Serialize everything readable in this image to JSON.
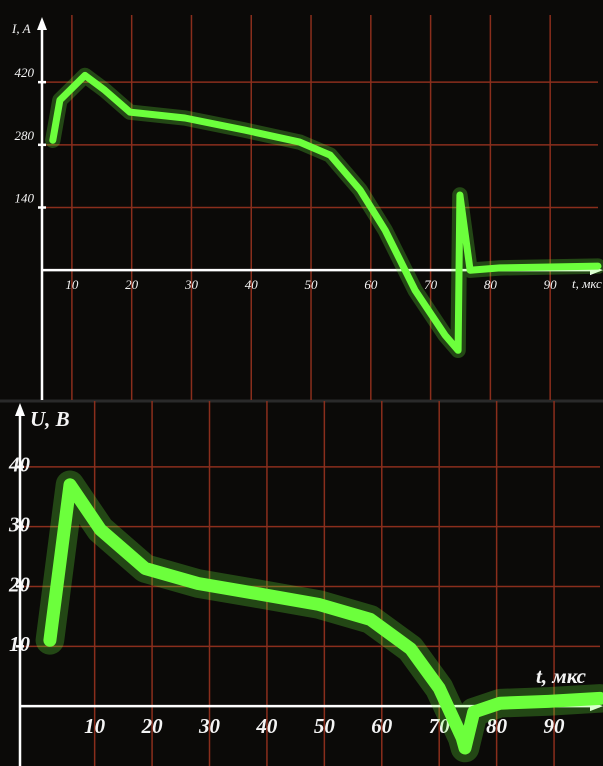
{
  "chart_data": [
    {
      "type": "line",
      "y_label": "I, A",
      "x_label": "t, мкс",
      "color": "#6cff3c",
      "grid": true,
      "x": [
        6.8,
        8,
        12.2,
        15.5,
        19.7,
        28.9,
        38.9,
        48.1,
        53.2,
        58.2,
        62.4,
        67.4,
        72.4,
        74.6,
        74.9,
        76.6,
        81.6,
        98
      ],
      "values": [
        290,
        380,
        435,
        402,
        353,
        340,
        313,
        286,
        257,
        179,
        89,
        -45,
        -145,
        -179,
        168,
        0,
        5,
        9
      ],
      "xlim": [
        5,
        98
      ],
      "ylim": [
        -290,
        570
      ],
      "xticks": [
        10,
        20,
        30,
        40,
        50,
        60,
        70,
        80,
        90
      ],
      "yticks": [
        140,
        280,
        420
      ]
    },
    {
      "type": "line",
      "y_label": "U, B",
      "x_label": "t, мкс",
      "color": "#6cff3c",
      "grid": true,
      "x": [
        2.2,
        5.7,
        11,
        18.8,
        28,
        39,
        49,
        58,
        65,
        70,
        74,
        74.5,
        76,
        80.6,
        89,
        98
      ],
      "values": [
        11,
        37,
        29.5,
        23,
        20.5,
        18.7,
        17,
        14.5,
        9.6,
        3,
        -5.3,
        -7,
        -1,
        0.5,
        0.8,
        1.3
      ],
      "xlim": [
        -3,
        98
      ],
      "ylim": [
        -10,
        51
      ],
      "xticks": [
        10,
        20,
        30,
        40,
        50,
        60,
        70,
        80,
        90
      ],
      "yticks": [
        10,
        20,
        30,
        40
      ]
    }
  ]
}
